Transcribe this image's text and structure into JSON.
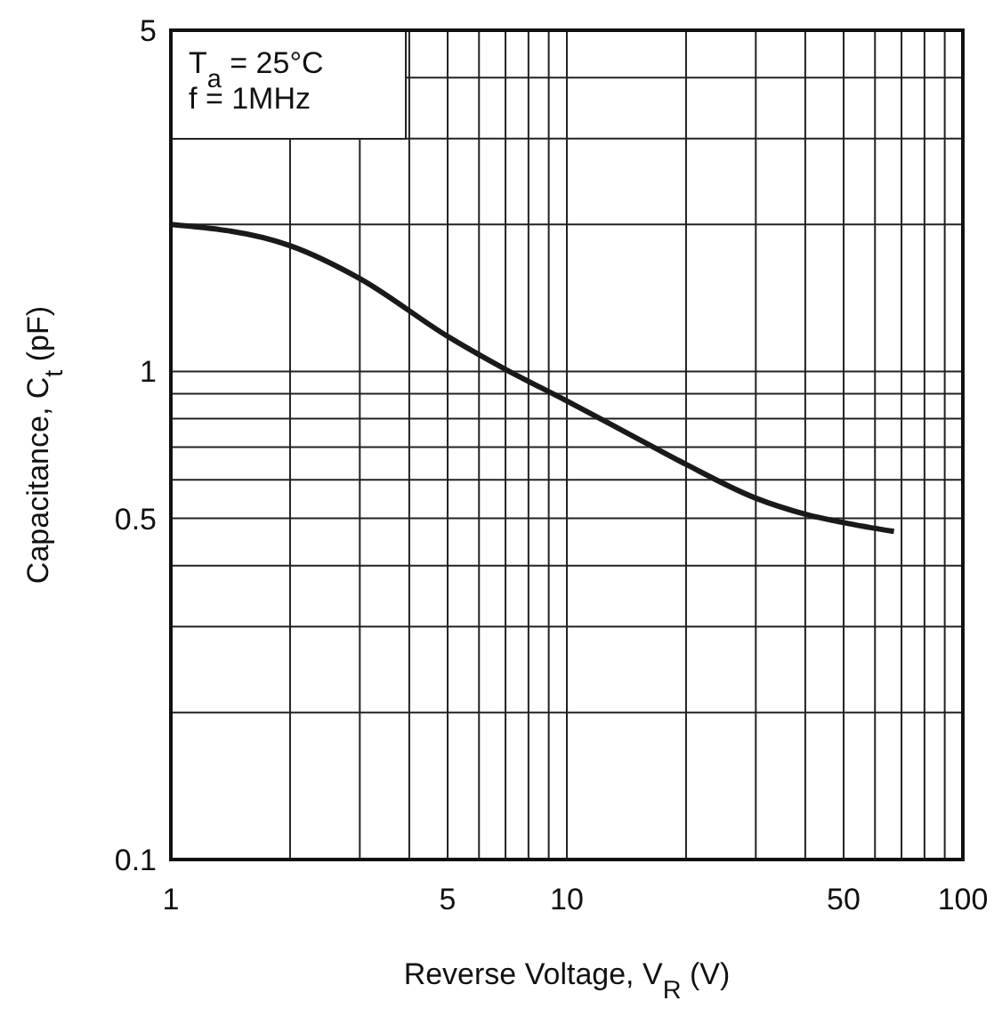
{
  "chart_data": {
    "type": "line",
    "xlabel": "Reverse Voltage, V$_{R}$ (V)",
    "ylabel": "Capacitance, C$_{t}$ (pF)",
    "log": "xy",
    "grid": true,
    "marker": "none",
    "line_style": "solid",
    "annotations": [
      "T$_{a}$ = 25°C",
      "f = 1MHz"
    ],
    "xlim": [
      1,
      100
    ],
    "ylim": [
      0.1,
      5
    ],
    "xticks": [
      1,
      {
        "value": 2,
        "label": null
      },
      {
        "value": 3,
        "label": null
      },
      {
        "value": 4,
        "label": null
      },
      5,
      {
        "value": 6,
        "label": null
      },
      {
        "value": 7,
        "label": null
      },
      {
        "value": 8,
        "label": null
      },
      {
        "value": 9,
        "label": null
      },
      10,
      {
        "value": 20,
        "label": null
      },
      {
        "value": 30,
        "label": null
      },
      {
        "value": 40,
        "label": null
      },
      50,
      {
        "value": 60,
        "label": null
      },
      {
        "value": 70,
        "label": null
      },
      {
        "value": 80,
        "label": null
      },
      {
        "value": 90,
        "label": null
      },
      100
    ],
    "yticks": [
      0.1,
      {
        "value": 0.2,
        "label": null
      },
      {
        "value": 0.3,
        "label": null
      },
      {
        "value": 0.4,
        "label": null
      },
      0.5,
      {
        "value": 0.6,
        "label": null
      },
      {
        "value": 0.7,
        "label": null
      },
      {
        "value": 0.8,
        "label": null
      },
      {
        "value": 0.9,
        "label": null
      },
      1,
      {
        "value": 2,
        "label": null
      },
      {
        "value": 3,
        "label": null
      },
      {
        "value": 4,
        "label": null
      },
      5
    ],
    "series": [
      {
        "color": "#1a1a1a",
        "x": [
          1,
          2,
          3,
          5,
          7,
          10,
          15,
          20,
          30,
          40,
          50,
          67
        ],
        "values": [
          2.0,
          1.81,
          1.55,
          1.18,
          1.01,
          0.87,
          0.73,
          0.645,
          0.55,
          0.51,
          0.49,
          0.47
        ]
      }
    ]
  }
}
